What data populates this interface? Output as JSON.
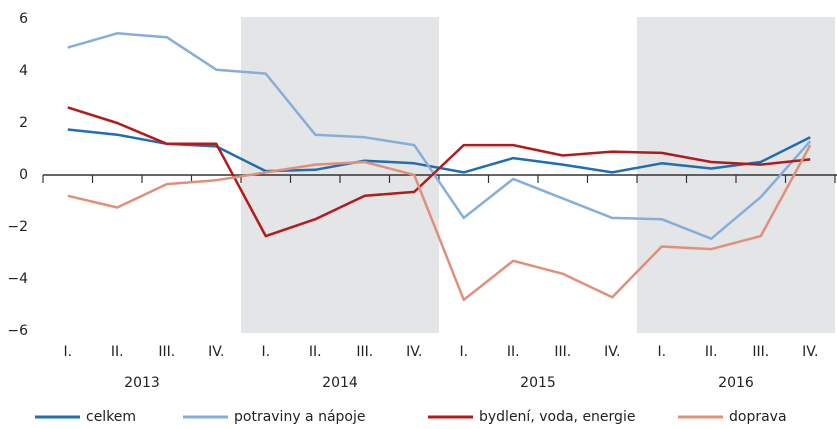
{
  "chart_data": {
    "type": "line",
    "categories": [
      "I.",
      "II.",
      "III.",
      "IV.",
      "I.",
      "II.",
      "III.",
      "IV.",
      "I.",
      "II.",
      "III.",
      "IV.",
      "I.",
      "II.",
      "III.",
      "IV."
    ],
    "years": [
      "2013",
      "2014",
      "2015",
      "2016"
    ],
    "series": [
      {
        "name": "celkem",
        "color": "#1f6eb0",
        "values": [
          1.75,
          1.55,
          1.2,
          1.1,
          0.15,
          0.2,
          0.55,
          0.45,
          0.1,
          0.65,
          0.4,
          0.1,
          0.45,
          0.25,
          0.5,
          1.45
        ]
      },
      {
        "name": "potraviny a nápoje",
        "color": "#86aedb",
        "values": [
          4.9,
          5.45,
          5.3,
          4.05,
          3.9,
          1.55,
          1.45,
          1.15,
          -1.65,
          -0.15,
          -0.9,
          -1.65,
          -1.7,
          -2.45,
          -0.85,
          1.3
        ]
      },
      {
        "name": "bydlení, voda, energie",
        "color": "#b31b1b",
        "values": [
          2.6,
          2.0,
          1.2,
          1.2,
          -2.35,
          -1.7,
          -0.8,
          -0.65,
          1.15,
          1.15,
          0.75,
          0.9,
          0.85,
          0.5,
          0.4,
          0.6
        ]
      },
      {
        "name": "doprava",
        "color": "#e0907a",
        "values": [
          -0.8,
          -1.25,
          -0.35,
          -0.2,
          0.1,
          0.4,
          0.5,
          0.0,
          -4.8,
          -3.3,
          -3.8,
          -4.7,
          -2.75,
          -2.85,
          -2.35,
          1.15
        ]
      }
    ],
    "ylim": [
      -6,
      6
    ],
    "yticks": [
      {
        "value": -6,
        "label": "−6"
      },
      {
        "value": -4,
        "label": "−4"
      },
      {
        "value": -2,
        "label": "−2"
      },
      0,
      2,
      4,
      6
    ],
    "grid": false
  }
}
